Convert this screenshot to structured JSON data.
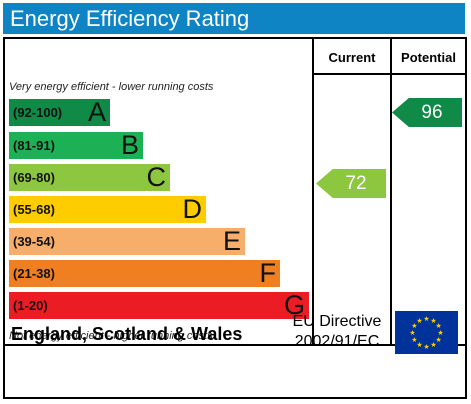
{
  "header": {
    "title": "Energy Efficiency Rating"
  },
  "columns": {
    "current": "Current",
    "potential": "Potential"
  },
  "notes": {
    "top": "Very energy efficient - lower running costs",
    "bottom": "Not energy efficient - higher running costs"
  },
  "bands": [
    {
      "range": "(92-100)",
      "letter": "A",
      "color": "#0f8a47"
    },
    {
      "range": "(81-91)",
      "letter": "B",
      "color": "#1db155"
    },
    {
      "range": "(69-80)",
      "letter": "C",
      "color": "#8dc63f"
    },
    {
      "range": "(55-68)",
      "letter": "D",
      "color": "#ffcc00"
    },
    {
      "range": "(39-54)",
      "letter": "E",
      "color": "#f8ae6b"
    },
    {
      "range": "(21-38)",
      "letter": "F",
      "color": "#f07f22"
    },
    {
      "range": "(1-20)",
      "letter": "G",
      "color": "#ec1c24"
    }
  ],
  "ratings": {
    "current": {
      "value": "72",
      "color": "#8dc63f"
    },
    "potential": {
      "value": "96",
      "color": "#0f8a47"
    }
  },
  "footer": {
    "region": "England, Scotland & Wales",
    "directive_line1": "EU Directive",
    "directive_line2": "2002/91/EC"
  },
  "flag": {
    "icon": "eu-flag-icon",
    "background": "#003399",
    "star_color": "#ffcc00"
  }
}
